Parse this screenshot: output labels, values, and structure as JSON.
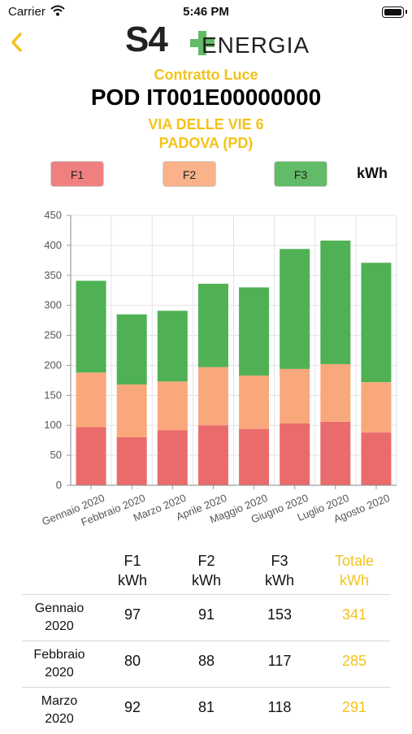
{
  "status": {
    "carrier": "Carrier",
    "time": "5:46 PM"
  },
  "header": {
    "logo_s4": "S4",
    "logo_text": "ENERGIA"
  },
  "contract": {
    "title": "Contratto Luce",
    "pod": "POD IT001E00000000",
    "address_line1": "VIA DELLE VIE 6",
    "address_line2": "PADOVA (PD)"
  },
  "legend": {
    "f1": "F1",
    "f2": "F2",
    "f3": "F3",
    "unit": "kWh"
  },
  "colors": {
    "f1": "#ea6b6b",
    "f2": "#f9a87c",
    "f3": "#4fb153",
    "accent": "#f4c21a"
  },
  "chart_data": {
    "type": "bar",
    "stacked": true,
    "categories": [
      "Gennaio 2020",
      "Febbraio 2020",
      "Marzo 2020",
      "Aprile 2020",
      "Maggio 2020",
      "Giugno 2020",
      "Luglio 2020",
      "Agosto 2020"
    ],
    "series": [
      {
        "name": "F1",
        "values": [
          97,
          80,
          92,
          100,
          94,
          103,
          106,
          88
        ]
      },
      {
        "name": "F2",
        "values": [
          91,
          88,
          81,
          97,
          89,
          91,
          96,
          84
        ]
      },
      {
        "name": "F3",
        "values": [
          153,
          117,
          118,
          139,
          147,
          200,
          206,
          199
        ]
      }
    ],
    "ylim": [
      0,
      450
    ],
    "yticks": [
      "0",
      "50",
      "100",
      "150",
      "200",
      "250",
      "300",
      "350",
      "400",
      "450"
    ],
    "grid": true
  },
  "table": {
    "headers": [
      {
        "l1": "F1",
        "l2": "kWh"
      },
      {
        "l1": "F2",
        "l2": "kWh"
      },
      {
        "l1": "F3",
        "l2": "kWh"
      },
      {
        "l1": "Totale",
        "l2": "kWh"
      }
    ],
    "rows": [
      {
        "m1": "Gennaio",
        "m2": "2020",
        "f1": "97",
        "f2": "91",
        "f3": "153",
        "tot": "341"
      },
      {
        "m1": "Febbraio",
        "m2": "2020",
        "f1": "80",
        "f2": "88",
        "f3": "117",
        "tot": "285"
      },
      {
        "m1": "Marzo",
        "m2": "2020",
        "f1": "92",
        "f2": "81",
        "f3": "118",
        "tot": "291"
      }
    ]
  }
}
